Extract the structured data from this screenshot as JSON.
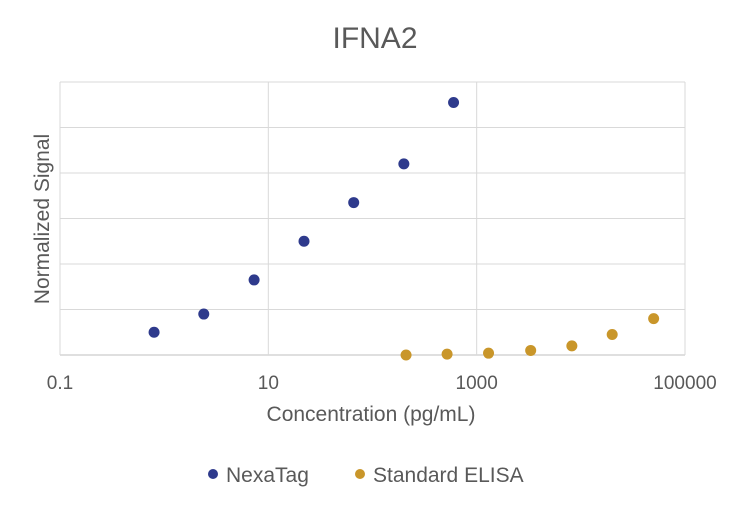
{
  "chart_data": {
    "type": "scatter",
    "title": "IFNA2",
    "xlabel": "Concentration (pg/mL)",
    "ylabel": "Normalized Signal",
    "x_scale": "log",
    "xlim": [
      0.1,
      100000
    ],
    "x_ticks": [
      {
        "value": 0.1,
        "label": "0.1"
      },
      {
        "value": 10,
        "label": "10"
      },
      {
        "value": 1000,
        "label": "1000"
      },
      {
        "value": 100000,
        "label": "100000"
      }
    ],
    "ylim": [
      0,
      6
    ],
    "y_gridlines": [
      0,
      1,
      2,
      3,
      4,
      5,
      6
    ],
    "y_tick_labels_shown": false,
    "grid": true,
    "legend_position": "bottom",
    "series": [
      {
        "name": "NexaTag",
        "color": "#2E3A8C",
        "points": [
          {
            "x": 0.8,
            "y": 0.5
          },
          {
            "x": 2.4,
            "y": 0.9
          },
          {
            "x": 7.3,
            "y": 1.65
          },
          {
            "x": 22,
            "y": 2.5
          },
          {
            "x": 66,
            "y": 3.35
          },
          {
            "x": 200,
            "y": 4.2
          },
          {
            "x": 600,
            "y": 5.55
          }
        ]
      },
      {
        "name": "Standard ELISA",
        "color": "#C9962A",
        "points": [
          {
            "x": 210,
            "y": 0.0
          },
          {
            "x": 520,
            "y": 0.02
          },
          {
            "x": 1300,
            "y": 0.04
          },
          {
            "x": 3300,
            "y": 0.1
          },
          {
            "x": 8200,
            "y": 0.2
          },
          {
            "x": 20000,
            "y": 0.45
          },
          {
            "x": 50000,
            "y": 0.8
          }
        ]
      }
    ]
  }
}
